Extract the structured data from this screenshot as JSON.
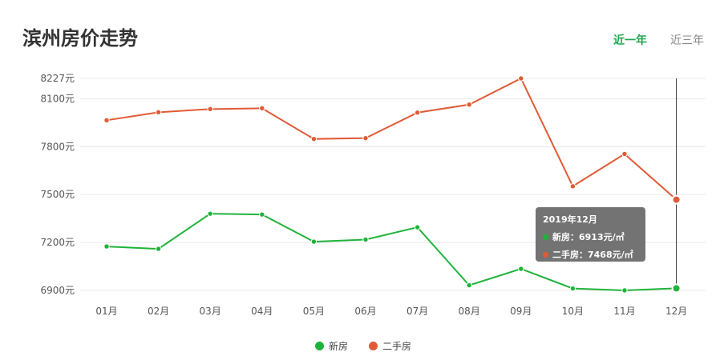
{
  "page": {
    "title": "滨州房价走势",
    "tabs": [
      {
        "label": "近一年",
        "active": true
      },
      {
        "label": "近三年",
        "active": false
      }
    ]
  },
  "colors": {
    "new_house": "#1fb33a",
    "second_hand": "#e05a35",
    "accent": "#1fa84f",
    "grid": "#e8e8e8",
    "axis_text": "#555555"
  },
  "chart_data": {
    "type": "line",
    "title": "滨州房价走势",
    "categories": [
      "01月",
      "02月",
      "03月",
      "04月",
      "05月",
      "06月",
      "07月",
      "08月",
      "09月",
      "10月",
      "11月",
      "12月"
    ],
    "y_ticks": [
      {
        "value": 6900,
        "label": "6900元"
      },
      {
        "value": 7200,
        "label": "7200元"
      },
      {
        "value": 7500,
        "label": "7500元"
      },
      {
        "value": 7800,
        "label": "7800元"
      },
      {
        "value": 8100,
        "label": "8100元"
      },
      {
        "value": 8227,
        "label": "8227元"
      }
    ],
    "ylim": [
      6900,
      8227
    ],
    "grid": true,
    "legend_position": "bottom-center",
    "series": [
      {
        "name": "新房",
        "color": "#1fb33a",
        "values": [
          7175,
          7160,
          7380,
          7375,
          7205,
          7218,
          7295,
          6932,
          7035,
          6912,
          6900,
          6913
        ]
      },
      {
        "name": "二手房",
        "color": "#e05a35",
        "values": [
          7965,
          8015,
          8035,
          8040,
          7848,
          7853,
          8013,
          8063,
          8227,
          7552,
          7754,
          7468
        ]
      }
    ],
    "highlight_index": 11
  },
  "tooltip": {
    "title": "2019年12月",
    "rows": [
      {
        "text": "新房：6913元/㎡",
        "color": "#1fb33a"
      },
      {
        "text": "二手房：7468元/㎡",
        "color": "#e05a35"
      }
    ]
  },
  "legend": [
    {
      "label": "新房",
      "color": "#1fb33a"
    },
    {
      "label": "二手房",
      "color": "#e05a35"
    }
  ]
}
